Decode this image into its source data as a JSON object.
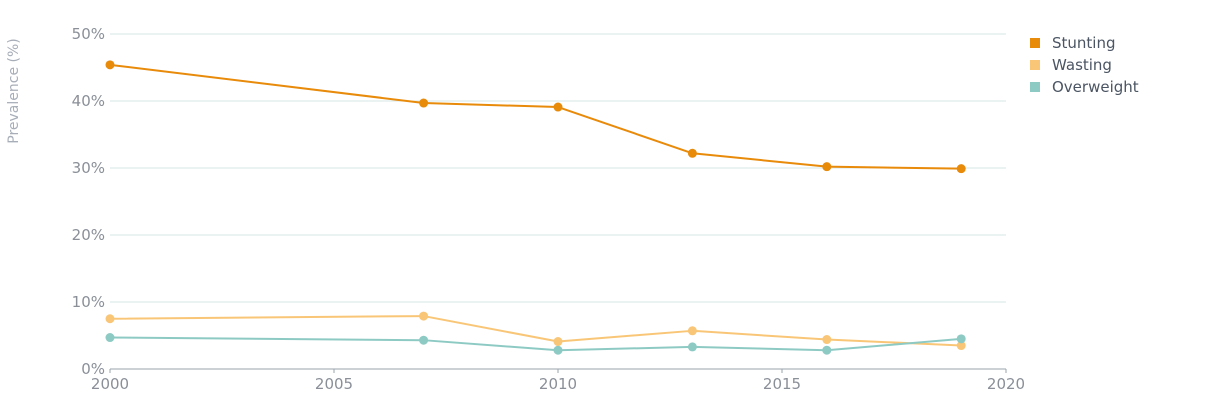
{
  "chart_data": {
    "type": "line",
    "ylabel": "Prevalence (%)",
    "xlim": [
      2000,
      2020
    ],
    "ylim": [
      0,
      50
    ],
    "x_ticks": [
      "2000",
      "2005",
      "2010",
      "2015",
      "2020"
    ],
    "y_ticks": [
      "0%",
      "10%",
      "20%",
      "30%",
      "40%",
      "50%"
    ],
    "grid": true,
    "legend_position": "top-right",
    "series": [
      {
        "name": "Stunting",
        "color": "#e88a0a",
        "x": [
          2000,
          2007,
          2010,
          2013,
          2016,
          2019
        ],
        "y": [
          45.4,
          39.7,
          39.1,
          32.2,
          30.2,
          29.9
        ]
      },
      {
        "name": "Wasting",
        "color": "#f9c677",
        "x": [
          2000,
          2007,
          2010,
          2013,
          2016,
          2019
        ],
        "y": [
          7.5,
          7.9,
          4.1,
          5.7,
          4.4,
          3.5
        ]
      },
      {
        "name": "Overweight",
        "color": "#8ecac4",
        "x": [
          2000,
          2007,
          2010,
          2013,
          2016,
          2019
        ],
        "y": [
          4.7,
          4.3,
          2.8,
          3.3,
          2.8,
          4.5
        ]
      }
    ]
  }
}
